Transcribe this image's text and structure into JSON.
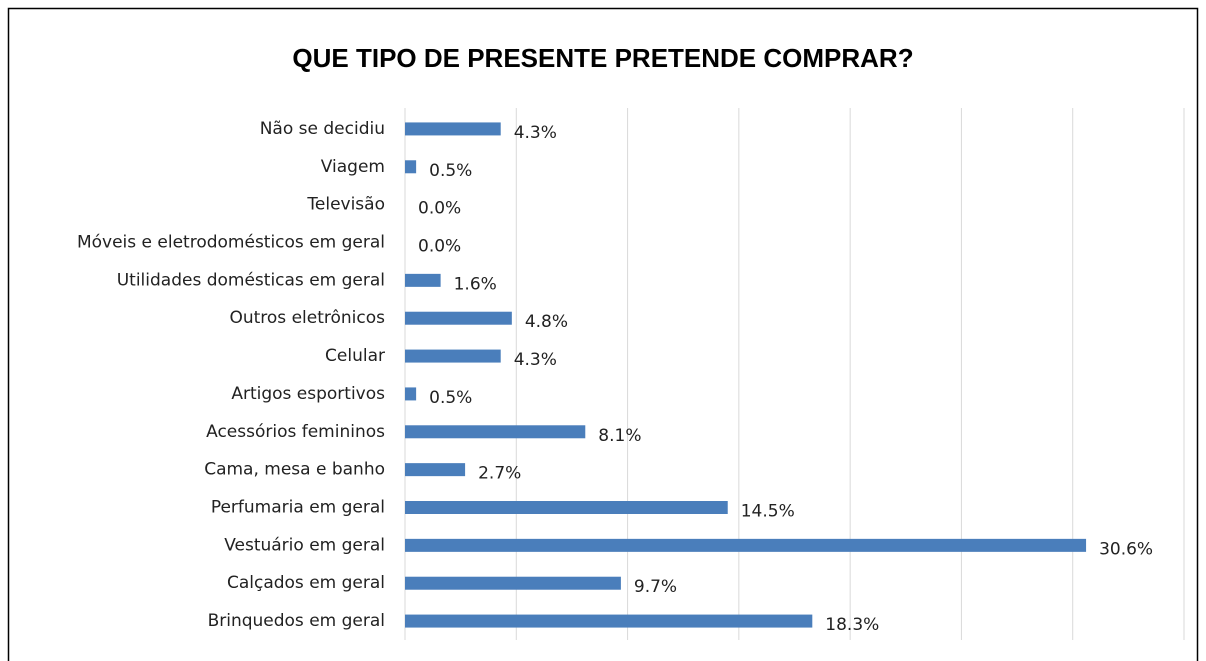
{
  "chart_data": {
    "type": "barh",
    "title": "QUE TIPO DE PRESENTE PRETENDE COMPRAR?",
    "categories": [
      "Não se decidiu",
      "Viagem",
      "Televisão",
      "Móveis e eletrodomésticos em geral",
      "Utilidades domésticas em geral",
      "Outros eletrônicos",
      "Celular",
      "Artigos esportivos",
      "Acessórios femininos",
      "Cama, mesa e banho",
      "Perfumaria em geral",
      "Vestuário em geral",
      "Calçados em geral",
      "Brinquedos em geral"
    ],
    "values": [
      4.3,
      0.5,
      0.0,
      0.0,
      1.6,
      4.8,
      4.3,
      0.5,
      8.1,
      2.7,
      14.5,
      30.6,
      9.7,
      18.3
    ],
    "value_labels": [
      "4.3%",
      "0.5%",
      "0.0%",
      "0.0%",
      "1.6%",
      "4.8%",
      "4.3%",
      "0.5%",
      "8.1%",
      "2.7%",
      "14.5%",
      "30.6%",
      "9.7%",
      "18.3%"
    ],
    "color": "#4a7ebb",
    "xlim": [
      0,
      35
    ],
    "xticks": [
      0,
      5,
      10,
      15,
      20,
      25,
      30,
      35
    ],
    "grid": true
  }
}
